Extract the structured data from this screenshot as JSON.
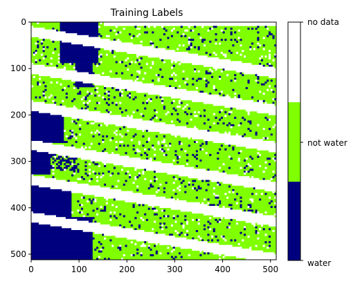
{
  "chart_data": {
    "type": "heatmap",
    "title": "Training Labels",
    "xlabel": "",
    "ylabel": "",
    "xlim": [
      0,
      512
    ],
    "ylim": [
      512,
      0
    ],
    "x_ticks": [
      0,
      100,
      200,
      300,
      400,
      500
    ],
    "y_ticks": [
      0,
      100,
      200,
      300,
      400,
      500
    ],
    "classes": [
      {
        "name": "water",
        "value": 0,
        "color": "#00007f"
      },
      {
        "name": "not water",
        "value": 1,
        "color": "#7fff00"
      },
      {
        "name": "no data",
        "value": 2,
        "color": "#ffffff"
      }
    ],
    "colorbar": {
      "position": "right",
      "labels": [
        "water",
        "not water",
        "no data"
      ]
    }
  }
}
